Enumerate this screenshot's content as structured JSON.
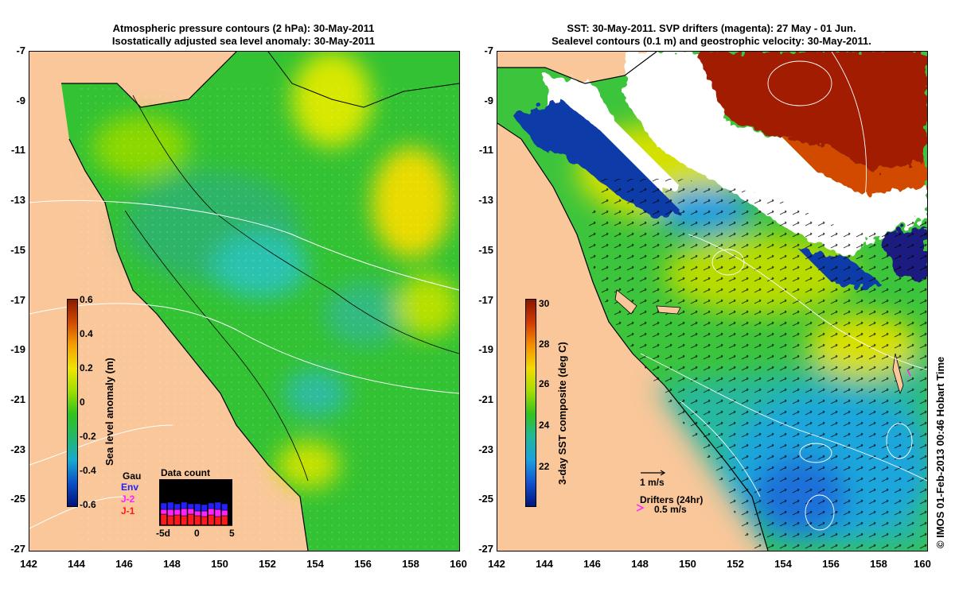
{
  "left_panel": {
    "title_line1": "Atmospheric pressure contours (2 hPa): 30-May-2011",
    "title_line2": "Isostatically adjusted sea level anomaly: 30-May-2011",
    "y_ticks": [
      "-7",
      "-9",
      "-11",
      "-13",
      "-15",
      "-17",
      "-19",
      "-21",
      "-23",
      "-25",
      "-27"
    ],
    "x_ticks": [
      "142",
      "144",
      "146",
      "148",
      "150",
      "152",
      "154",
      "156",
      "158",
      "160"
    ],
    "colorbar": {
      "label": "Sea level anomaly (m)",
      "ticks": [
        "0.6",
        "0.4",
        "0.2",
        "0",
        "-0.2",
        "-0.4",
        "-0.6"
      ],
      "colors": [
        "#8b1a00",
        "#d24a00",
        "#f5a100",
        "#f0e400",
        "#9fdd00",
        "#2ec41c",
        "#22b86a",
        "#15aad0",
        "#0a4fc8",
        "#00127a"
      ]
    },
    "data_count": {
      "title": "Data count",
      "legend": [
        {
          "label": "Gau",
          "color": "#000000"
        },
        {
          "label": "Env",
          "color": "#2222ff"
        },
        {
          "label": "J-2",
          "color": "#ff22ff"
        },
        {
          "label": "J-1",
          "color": "#ff1a1a"
        }
      ],
      "x_labels": [
        "-5d",
        "0",
        "5"
      ]
    }
  },
  "right_panel": {
    "title_line1": "SST: 30-May-2011. SVP drifters (magenta): 27 May - 01 Jun.",
    "title_line2": "Sealevel contours (0.1 m) and geostrophic velocity: 30-May-2011.",
    "y_ticks": [
      "-7",
      "-9",
      "-11",
      "-13",
      "-15",
      "-17",
      "-19",
      "-21",
      "-23",
      "-25",
      "-27"
    ],
    "x_ticks": [
      "142",
      "144",
      "146",
      "148",
      "150",
      "152",
      "154",
      "156",
      "158",
      "160"
    ],
    "colorbar": {
      "label": "3-day SST composite (deg C)",
      "ticks": [
        "30",
        "28",
        "26",
        "24",
        "22"
      ],
      "colors": [
        "#8b1500",
        "#d23c00",
        "#f59000",
        "#f2dc00",
        "#a6dc00",
        "#33c21c",
        "#1fb89c",
        "#1aa0e0",
        "#1350d0",
        "#00137a"
      ]
    },
    "velocity_scale": "1 m/s",
    "drifters_label": "Drifters (24hr)",
    "drifters_speed": "0.5 m/s"
  },
  "credit": "© IMOS 01-Feb-2013 00:46 Hobart Time",
  "colors": {
    "land": "#f9c79a",
    "ocean_base": "#33c233",
    "cloud": "#ffffff",
    "warm_sst": "#a11e00",
    "drifter": "#ff22ff"
  }
}
